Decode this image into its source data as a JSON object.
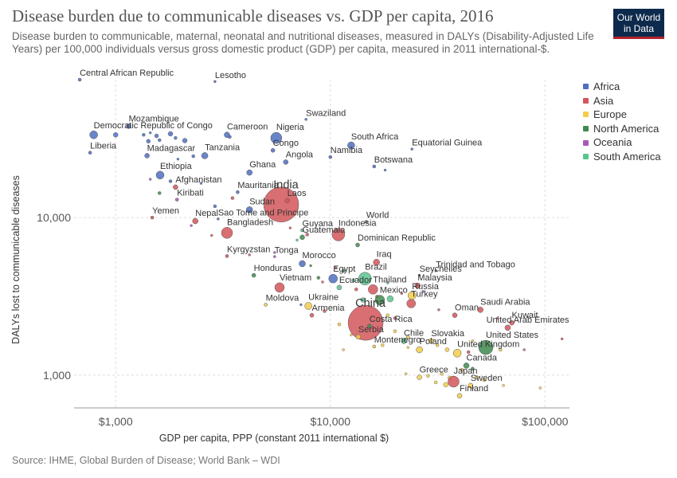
{
  "header": {
    "title": "Disease burden due to communicable diseases vs. GDP per capita, 2016",
    "subtitle": "Disease burden to communicable, maternal, neonatal and nutritional diseases, measured in DALYs (Disability-Adjusted Life Years) per 100,000 individuals versus gross domestic product (GDP) per capita, measured in 2011 international-$.",
    "logo_line1": "Our World",
    "logo_line2": "in Data"
  },
  "footer": {
    "source": "Source: IHME, Global Burden of Disease; World Bank – WDI"
  },
  "colors": {
    "Africa": "#4f6fbf",
    "Asia": "#d2565b",
    "Europe": "#f2cd4a",
    "North America": "#3f8a4f",
    "Oceania": "#a45bb4",
    "South America": "#5ac48e"
  },
  "chart_data": {
    "type": "scatter",
    "title": "Disease burden due to communicable diseases vs. GDP per capita, 2016",
    "xlabel": "GDP per capita, PPP (constant 2011 international $)",
    "ylabel": "DALYs lost to communicable diseases",
    "x_scale": "log",
    "y_scale": "log",
    "xlim": [
      640,
      130000
    ],
    "ylim": [
      620,
      75000
    ],
    "x_ticks": [
      1000,
      10000,
      100000
    ],
    "x_tick_labels": [
      "$1,000",
      "$10,000",
      "$100,000"
    ],
    "y_ticks": [
      1000,
      10000
    ],
    "y_tick_labels": [
      "1,000",
      "10,000"
    ],
    "grid": true,
    "legend_position": "right",
    "legend": [
      "Africa",
      "Asia",
      "Europe",
      "North America",
      "Oceania",
      "South America"
    ],
    "points": [
      {
        "label": "Central African Republic",
        "x": 680,
        "y": 75000,
        "r": 2,
        "region": "Africa"
      },
      {
        "label": "Lesotho",
        "x": 2900,
        "y": 73000,
        "r": 1.5,
        "region": "Africa"
      },
      {
        "label": "Swaziland",
        "x": 7700,
        "y": 42000,
        "r": 1.5,
        "region": "Africa"
      },
      {
        "label": "Mozambique",
        "x": 1150,
        "y": 38000,
        "r": 3,
        "region": "Africa"
      },
      {
        "label": "Democratic Republic of Congo",
        "x": 790,
        "y": 33500,
        "r": 5,
        "region": "Africa"
      },
      {
        "label": "Cameroon",
        "x": 3300,
        "y": 33500,
        "r": 3.5,
        "region": "Africa"
      },
      {
        "label": "Nigeria",
        "x": 5600,
        "y": 32000,
        "r": 7,
        "region": "Africa"
      },
      {
        "label": "South Africa",
        "x": 12500,
        "y": 28700,
        "r": 4.5,
        "region": "Africa"
      },
      {
        "label": "Equatorial Guinea",
        "x": 24000,
        "y": 27200,
        "r": 1.5,
        "region": "Africa"
      },
      {
        "label": "Liberia",
        "x": 760,
        "y": 25800,
        "r": 2,
        "region": "Africa"
      },
      {
        "label": "Congo",
        "x": 5400,
        "y": 26700,
        "r": 2.5,
        "region": "Africa"
      },
      {
        "label": "Madagascar",
        "x": 1400,
        "y": 24700,
        "r": 3,
        "region": "Africa"
      },
      {
        "label": "Tanzania",
        "x": 2600,
        "y": 24700,
        "r": 4,
        "region": "Africa"
      },
      {
        "label": "Namibia",
        "x": 10000,
        "y": 24200,
        "r": 2,
        "region": "Africa"
      },
      {
        "label": "Angola",
        "x": 6200,
        "y": 22500,
        "r": 3,
        "region": "Africa"
      },
      {
        "label": "Botswana",
        "x": 16000,
        "y": 21100,
        "r": 2,
        "region": "Africa"
      },
      {
        "label": "Ghana",
        "x": 4200,
        "y": 19300,
        "r": 3.5,
        "region": "Africa"
      },
      {
        "label": "Ethiopia",
        "x": 1610,
        "y": 18600,
        "r": 5,
        "region": "Africa"
      },
      {
        "label": "Afghanistan",
        "x": 1900,
        "y": 15600,
        "r": 3,
        "region": "Asia"
      },
      {
        "label": "Mauritania",
        "x": 3700,
        "y": 14500,
        "r": 2,
        "region": "Africa"
      },
      {
        "label": "India",
        "x": 5900,
        "y": 12100,
        "r": 22,
        "region": "Asia"
      },
      {
        "label": "Laos",
        "x": 6300,
        "y": 12800,
        "r": 3,
        "region": "Asia"
      },
      {
        "label": "Kiribati",
        "x": 1930,
        "y": 13000,
        "r": 2,
        "region": "Oceania"
      },
      {
        "label": "Sudan",
        "x": 4200,
        "y": 11200,
        "r": 4,
        "region": "Africa"
      },
      {
        "label": "Yemen",
        "x": 1480,
        "y": 10000,
        "r": 2,
        "region": "Asia"
      },
      {
        "label": "Nepal",
        "x": 2350,
        "y": 9500,
        "r": 3.5,
        "region": "Asia"
      },
      {
        "label": "Sao Tome and Principe",
        "x": 3000,
        "y": 9800,
        "r": 1.5,
        "region": "Africa"
      },
      {
        "label": "Guyana",
        "x": 7400,
        "y": 8300,
        "r": 2,
        "region": "South America"
      },
      {
        "label": "Indonesia",
        "x": 10900,
        "y": 7800,
        "r": 8,
        "region": "Asia"
      },
      {
        "label": "World",
        "x": 14700,
        "y": 9400,
        "r": 2,
        "region": ""
      },
      {
        "label": "Bangladesh",
        "x": 3300,
        "y": 8000,
        "r": 7,
        "region": "Asia"
      },
      {
        "label": "Guatemala",
        "x": 7400,
        "y": 7500,
        "r": 3,
        "region": "North America"
      },
      {
        "label": "Dominican Republic",
        "x": 13400,
        "y": 6700,
        "r": 2.5,
        "region": "North America"
      },
      {
        "label": "Kyrgyzstan",
        "x": 3300,
        "y": 5700,
        "r": 2,
        "region": "Asia"
      },
      {
        "label": "Tonga",
        "x": 5500,
        "y": 5650,
        "r": 1.5,
        "region": "Oceania"
      },
      {
        "label": "Iraq",
        "x": 16400,
        "y": 5200,
        "r": 4,
        "region": "Asia"
      },
      {
        "label": "Morocco",
        "x": 7400,
        "y": 5100,
        "r": 4,
        "region": "Africa"
      },
      {
        "label": "Trinidad and Tobago",
        "x": 31000,
        "y": 4600,
        "r": 1.5,
        "region": "North America"
      },
      {
        "label": "Honduras",
        "x": 4400,
        "y": 4300,
        "r": 2.5,
        "region": "North America"
      },
      {
        "label": "Seychelles",
        "x": 26000,
        "y": 4300,
        "r": 1.5,
        "region": "Africa"
      },
      {
        "label": "Egypt",
        "x": 10300,
        "y": 4100,
        "r": 5.5,
        "region": "Africa"
      },
      {
        "label": "Brazil",
        "x": 14500,
        "y": 4100,
        "r": 8,
        "region": "South America"
      },
      {
        "label": "Malaysia",
        "x": 25500,
        "y": 3700,
        "r": 3.5,
        "region": "Asia"
      },
      {
        "label": "Vietnam",
        "x": 5800,
        "y": 3600,
        "r": 6,
        "region": "Asia"
      },
      {
        "label": "Ecuador",
        "x": 11000,
        "y": 3600,
        "r": 3,
        "region": "South America"
      },
      {
        "label": "Thailand",
        "x": 15800,
        "y": 3500,
        "r": 6,
        "region": "Asia"
      },
      {
        "label": "Russia",
        "x": 24000,
        "y": 3200,
        "r": 5,
        "region": "Europe"
      },
      {
        "label": "Mexico",
        "x": 17000,
        "y": 3000,
        "r": 6,
        "region": "North America"
      },
      {
        "label": "Moldova",
        "x": 5000,
        "y": 2800,
        "r": 2,
        "region": "Europe"
      },
      {
        "label": "Ukraine",
        "x": 7900,
        "y": 2750,
        "r": 4.5,
        "region": "Europe"
      },
      {
        "label": "Turkey",
        "x": 23800,
        "y": 2850,
        "r": 5.5,
        "region": "Asia"
      },
      {
        "label": "Saudi Arabia",
        "x": 50000,
        "y": 2600,
        "r": 3.5,
        "region": "Asia"
      },
      {
        "label": "China",
        "x": 14600,
        "y": 2150,
        "r": 22,
        "region": "Asia"
      },
      {
        "label": "Armenia",
        "x": 8200,
        "y": 2400,
        "r": 2.5,
        "region": "Asia"
      },
      {
        "label": "Oman",
        "x": 38000,
        "y": 2400,
        "r": 3,
        "region": "Asia"
      },
      {
        "label": "Costa Rica",
        "x": 15200,
        "y": 2050,
        "r": 2.5,
        "region": "North America"
      },
      {
        "label": "Kuwait",
        "x": 70000,
        "y": 2150,
        "r": 3,
        "region": "Asia"
      },
      {
        "label": "United Arab Emirates",
        "x": 67000,
        "y": 2000,
        "r": 3.5,
        "region": "Asia"
      },
      {
        "label": "Serbia",
        "x": 13500,
        "y": 1750,
        "r": 3,
        "region": "Europe"
      },
      {
        "label": "Chile",
        "x": 22000,
        "y": 1650,
        "r": 3.5,
        "region": "South America"
      },
      {
        "label": "Slovakia",
        "x": 29500,
        "y": 1650,
        "r": 3,
        "region": "Europe"
      },
      {
        "label": "United States",
        "x": 53000,
        "y": 1500,
        "r": 9,
        "region": "North America"
      },
      {
        "label": "Montenegro",
        "x": 16000,
        "y": 1520,
        "r": 2,
        "region": "Europe"
      },
      {
        "label": "Poland",
        "x": 26000,
        "y": 1450,
        "r": 4,
        "region": "Europe"
      },
      {
        "label": "United Kingdom",
        "x": 39000,
        "y": 1380,
        "r": 5,
        "region": "Europe"
      },
      {
        "label": "Canada",
        "x": 43000,
        "y": 1150,
        "r": 3.5,
        "region": "North America"
      },
      {
        "label": "Greece",
        "x": 26000,
        "y": 970,
        "r": 3,
        "region": "Europe"
      },
      {
        "label": "Japan",
        "x": 37500,
        "y": 910,
        "r": 7,
        "region": "Asia"
      },
      {
        "label": "Sweden",
        "x": 45000,
        "y": 860,
        "r": 3,
        "region": "Europe"
      },
      {
        "label": "Finland",
        "x": 40000,
        "y": 740,
        "r": 3,
        "region": "Europe"
      }
    ],
    "unlabeled_points": [
      {
        "x": 1000,
        "y": 33500,
        "r": 3,
        "region": "Africa"
      },
      {
        "x": 1350,
        "y": 33500,
        "r": 2,
        "region": "Africa"
      },
      {
        "x": 1450,
        "y": 34500,
        "r": 1.5,
        "region": "Africa"
      },
      {
        "x": 1550,
        "y": 33000,
        "r": 2.5,
        "region": "Africa"
      },
      {
        "x": 1600,
        "y": 31000,
        "r": 2,
        "region": "Africa"
      },
      {
        "x": 1800,
        "y": 34000,
        "r": 3,
        "region": "Africa"
      },
      {
        "x": 1900,
        "y": 32000,
        "r": 2,
        "region": "Africa"
      },
      {
        "x": 1420,
        "y": 30500,
        "r": 2.5,
        "region": "Africa"
      },
      {
        "x": 2100,
        "y": 30800,
        "r": 3,
        "region": "Africa"
      },
      {
        "x": 3400,
        "y": 32500,
        "r": 2,
        "region": "Africa"
      },
      {
        "x": 2300,
        "y": 24500,
        "r": 2,
        "region": "Africa"
      },
      {
        "x": 1950,
        "y": 23500,
        "r": 1.5,
        "region": "Africa"
      },
      {
        "x": 1800,
        "y": 17000,
        "r": 2,
        "region": "Africa"
      },
      {
        "x": 1450,
        "y": 17500,
        "r": 1.5,
        "region": "Oceania"
      },
      {
        "x": 1600,
        "y": 14300,
        "r": 2,
        "region": "North America"
      },
      {
        "x": 2500,
        "y": 16500,
        "r": 1.5,
        "region": "Africa"
      },
      {
        "x": 2900,
        "y": 11800,
        "r": 2,
        "region": "Africa"
      },
      {
        "x": 3500,
        "y": 13300,
        "r": 2,
        "region": "Asia"
      },
      {
        "x": 18000,
        "y": 20000,
        "r": 1.5,
        "region": "Africa"
      },
      {
        "x": 2250,
        "y": 8900,
        "r": 1.5,
        "region": "Oceania"
      },
      {
        "x": 2800,
        "y": 7700,
        "r": 1.5,
        "region": "Asia"
      },
      {
        "x": 6500,
        "y": 8600,
        "r": 1.5,
        "region": "Asia"
      },
      {
        "x": 7800,
        "y": 7800,
        "r": 2,
        "region": "Asia"
      },
      {
        "x": 7000,
        "y": 7200,
        "r": 1.5,
        "region": "South America"
      },
      {
        "x": 5500,
        "y": 6000,
        "r": 1.5,
        "region": "Oceania"
      },
      {
        "x": 4200,
        "y": 5800,
        "r": 1.5,
        "region": "Asia"
      },
      {
        "x": 8100,
        "y": 4950,
        "r": 1.5,
        "region": "North America"
      },
      {
        "x": 10600,
        "y": 4800,
        "r": 1.5,
        "region": "Asia"
      },
      {
        "x": 11500,
        "y": 4600,
        "r": 2,
        "region": "North America"
      },
      {
        "x": 8800,
        "y": 4150,
        "r": 2,
        "region": "North America"
      },
      {
        "x": 9200,
        "y": 3900,
        "r": 1.5,
        "region": "Asia"
      },
      {
        "x": 12800,
        "y": 4000,
        "r": 2,
        "region": "South America"
      },
      {
        "x": 18500,
        "y": 3850,
        "r": 1.5,
        "region": "South America"
      },
      {
        "x": 13200,
        "y": 3500,
        "r": 2,
        "region": "Asia"
      },
      {
        "x": 14200,
        "y": 3000,
        "r": 3,
        "region": "South America"
      },
      {
        "x": 16500,
        "y": 3150,
        "r": 2,
        "region": "Asia"
      },
      {
        "x": 19000,
        "y": 3050,
        "r": 4,
        "region": "South America"
      },
      {
        "x": 21500,
        "y": 3300,
        "r": 1.5,
        "region": "Asia"
      },
      {
        "x": 27000,
        "y": 3400,
        "r": 1.5,
        "region": "Oceania"
      },
      {
        "x": 7300,
        "y": 2800,
        "r": 1.5,
        "region": "Africa"
      },
      {
        "x": 9400,
        "y": 2550,
        "r": 2,
        "region": "Asia"
      },
      {
        "x": 11000,
        "y": 2100,
        "r": 2,
        "region": "Europe"
      },
      {
        "x": 12500,
        "y": 1800,
        "r": 1.5,
        "region": "Europe"
      },
      {
        "x": 18500,
        "y": 2400,
        "r": 2,
        "region": "Europe"
      },
      {
        "x": 20000,
        "y": 2300,
        "r": 2,
        "region": "Asia"
      },
      {
        "x": 32000,
        "y": 2600,
        "r": 1.5,
        "region": "Asia"
      },
      {
        "x": 60000,
        "y": 2300,
        "r": 1.5,
        "region": "Asia"
      },
      {
        "x": 20000,
        "y": 1900,
        "r": 2,
        "region": "Europe"
      },
      {
        "x": 23000,
        "y": 1750,
        "r": 2,
        "region": "Europe"
      },
      {
        "x": 11500,
        "y": 1450,
        "r": 1.5,
        "region": "Europe"
      },
      {
        "x": 17500,
        "y": 1550,
        "r": 2,
        "region": "Europe"
      },
      {
        "x": 23000,
        "y": 1500,
        "r": 1.5,
        "region": "Europe"
      },
      {
        "x": 31500,
        "y": 1550,
        "r": 2,
        "region": "Europe"
      },
      {
        "x": 35000,
        "y": 1450,
        "r": 2.5,
        "region": "Europe"
      },
      {
        "x": 46000,
        "y": 1650,
        "r": 1.5,
        "region": "Europe"
      },
      {
        "x": 62000,
        "y": 1450,
        "r": 2,
        "region": "Europe"
      },
      {
        "x": 80000,
        "y": 1450,
        "r": 1.5,
        "region": "Asia"
      },
      {
        "x": 120000,
        "y": 1700,
        "r": 1.5,
        "region": "Asia"
      },
      {
        "x": 44000,
        "y": 1400,
        "r": 2,
        "region": "Asia"
      },
      {
        "x": 46000,
        "y": 1100,
        "r": 2,
        "region": "North America"
      },
      {
        "x": 41000,
        "y": 1080,
        "r": 2,
        "region": "Europe"
      },
      {
        "x": 22500,
        "y": 1020,
        "r": 1.5,
        "region": "Europe"
      },
      {
        "x": 28500,
        "y": 990,
        "r": 2,
        "region": "Europe"
      },
      {
        "x": 33000,
        "y": 1020,
        "r": 2,
        "region": "Europe"
      },
      {
        "x": 36000,
        "y": 960,
        "r": 2.5,
        "region": "Europe"
      },
      {
        "x": 31000,
        "y": 900,
        "r": 2,
        "region": "Europe"
      },
      {
        "x": 34500,
        "y": 870,
        "r": 3,
        "region": "Europe"
      },
      {
        "x": 48000,
        "y": 970,
        "r": 2,
        "region": "Europe"
      },
      {
        "x": 52000,
        "y": 930,
        "r": 2,
        "region": "Europe"
      },
      {
        "x": 46000,
        "y": 830,
        "r": 1.5,
        "region": "Europe"
      },
      {
        "x": 64000,
        "y": 860,
        "r": 1.5,
        "region": "Europe"
      },
      {
        "x": 95000,
        "y": 830,
        "r": 1.5,
        "region": "Europe"
      }
    ]
  }
}
